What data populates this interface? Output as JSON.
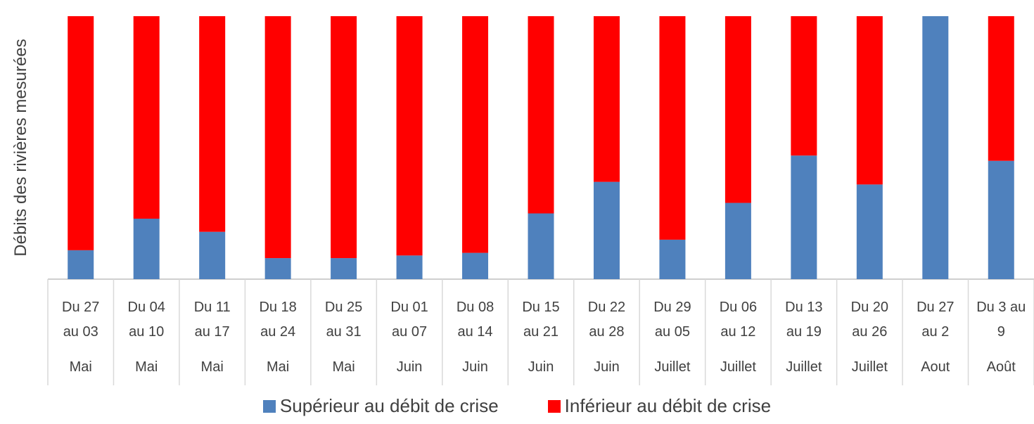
{
  "chart_data": {
    "type": "stacked_bar",
    "y_axis_title": "Débits des rivières mesurées",
    "categories": [
      "Du 27 au 03",
      "Du 04 au 10",
      "Du 11 au 17",
      "Du 18 au 24",
      "Du 25 au 31",
      "Du 01 au 07",
      "Du 08 au 14",
      "Du 15 au 21",
      "Du 22 au 28",
      "Du 29 au 05",
      "Du 06 au 12",
      "Du 13 au 19",
      "Du 20 au 26",
      "Du 27 au 2",
      "Du 3 au 9"
    ],
    "category_groups": [
      "Mai",
      "Mai",
      "Mai",
      "Mai",
      "Mai",
      "Juin",
      "Juin",
      "Juin",
      "Juin",
      "Juillet",
      "Juillet",
      "Juillet",
      "Juillet",
      "Aout",
      "Août"
    ],
    "series": [
      {
        "name": "Supérieur au débit de crise",
        "color": "#4f81bd",
        "values": [
          11,
          23,
          18,
          8,
          8,
          9,
          10,
          25,
          37,
          15,
          29,
          47,
          36,
          100,
          45
        ]
      },
      {
        "name": "Inférieur au débit de crise",
        "color": "#ff0000",
        "values": [
          89,
          77,
          82,
          92,
          92,
          91,
          90,
          75,
          63,
          85,
          71,
          53,
          64,
          0,
          55
        ]
      }
    ],
    "ylim": [
      0,
      100
    ],
    "legend": "bottom"
  }
}
